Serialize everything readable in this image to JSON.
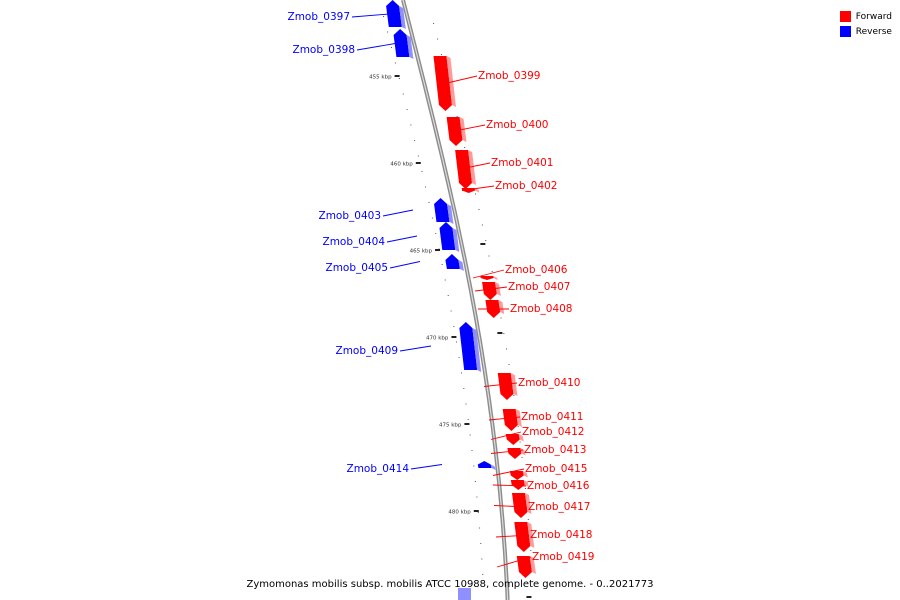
{
  "legend": [
    {
      "label": "Forward",
      "color": "#ff0000"
    },
    {
      "label": "Reverse",
      "color": "#0000ff"
    }
  ],
  "caption": "Zymomonas mobilis subsp. mobilis ATCC 10988, complete genome. - 0..2021773",
  "scale_labels": [
    "455 kbp",
    "460 kbp",
    "465 kbp",
    "470 kbp",
    "475 kbp",
    "480 kbp"
  ],
  "genes": [
    {
      "name": "Zmob_0397",
      "strand": "reverse"
    },
    {
      "name": "Zmob_0398",
      "strand": "reverse"
    },
    {
      "name": "Zmob_0399",
      "strand": "forward"
    },
    {
      "name": "Zmob_0400",
      "strand": "forward"
    },
    {
      "name": "Zmob_0401",
      "strand": "forward"
    },
    {
      "name": "Zmob_0402",
      "strand": "forward"
    },
    {
      "name": "Zmob_0403",
      "strand": "reverse"
    },
    {
      "name": "Zmob_0404",
      "strand": "reverse"
    },
    {
      "name": "Zmob_0405",
      "strand": "reverse"
    },
    {
      "name": "Zmob_0406",
      "strand": "forward"
    },
    {
      "name": "Zmob_0407",
      "strand": "forward"
    },
    {
      "name": "Zmob_0408",
      "strand": "forward"
    },
    {
      "name": "Zmob_0409",
      "strand": "reverse"
    },
    {
      "name": "Zmob_0410",
      "strand": "forward"
    },
    {
      "name": "Zmob_0411",
      "strand": "forward"
    },
    {
      "name": "Zmob_0412",
      "strand": "forward"
    },
    {
      "name": "Zmob_0413",
      "strand": "forward"
    },
    {
      "name": "Zmob_0414",
      "strand": "reverse"
    },
    {
      "name": "Zmob_0415",
      "strand": "forward"
    },
    {
      "name": "Zmob_0416",
      "strand": "forward"
    },
    {
      "name": "Zmob_0417",
      "strand": "forward"
    },
    {
      "name": "Zmob_0418",
      "strand": "forward"
    },
    {
      "name": "Zmob_0419",
      "strand": "forward"
    }
  ]
}
